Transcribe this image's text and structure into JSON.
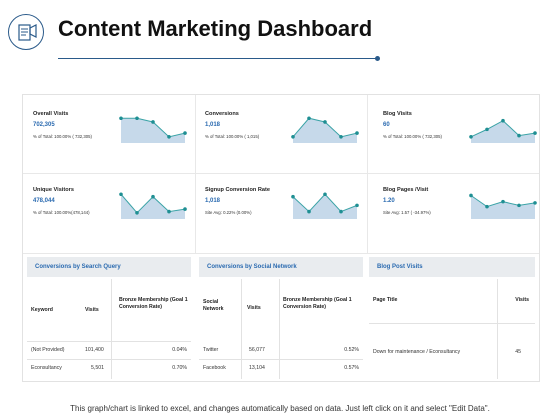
{
  "page": {
    "title": "Content Marketing Dashboard",
    "footer": "This graph/chart is linked to excel, and changes automatically based on data. Just left click on it and select \"Edit Data\"."
  },
  "metrics": [
    {
      "label": "Overall Visits",
      "value": "702,305",
      "sub": "% of Total: 100.00% ( 732,305)",
      "trend": [
        4,
        4,
        3.4,
        1,
        1.6
      ]
    },
    {
      "label": "Conversions",
      "value": "1,018",
      "sub": "% of Total: 100.00% ( 1,015)",
      "trend": [
        1,
        4,
        3.4,
        1,
        1.6
      ]
    },
    {
      "label": "Blog Visits",
      "value": "60",
      "sub": "% of Total: 100.00% ( 732,305)",
      "trend": [
        1,
        2.2,
        3.6,
        1.2,
        1.6
      ]
    },
    {
      "label": "Unique Visitors",
      "value": "478,044",
      "sub": "% of Total: 100.00%(478,144)",
      "trend": [
        4,
        1,
        3.6,
        1.2,
        1.6
      ]
    },
    {
      "label": "Signup Conversion Rate",
      "value": "1,018",
      "sub": "Site Avg: 0.22% (0.00%)",
      "trend": [
        3.6,
        1.2,
        4,
        1.2,
        2.2
      ]
    },
    {
      "label": "Blog Pages /Visit",
      "value": "1.20",
      "sub": "Site Avg: 1.57  ( -34.97%)",
      "trend": [
        3.8,
        2,
        2.8,
        2.2,
        2.6
      ]
    }
  ],
  "search": {
    "heading": "Conversions by Search Query",
    "columns": [
      "Keyword",
      "Visits",
      "Bronze Membership (Goal 1 Conversion Rate)"
    ],
    "rows": [
      [
        "(Not Provided)",
        "101,400",
        "0.04%"
      ],
      [
        "Econsultancy",
        "5,501",
        "0.70%"
      ]
    ]
  },
  "social": {
    "heading": "Conversions by Social Network",
    "columns": [
      "Social Network",
      "Visits",
      "Bronze Membership (Goal 1 Conversion Rate)"
    ],
    "rows": [
      [
        "Twitter",
        "56,077",
        "0.52%"
      ],
      [
        "Facebook",
        "13,104",
        "0.57%"
      ]
    ]
  },
  "blog": {
    "heading": "Blog Post Visits",
    "columns": [
      "Page Title",
      "Visits"
    ],
    "rows": [
      [
        "Down for maintenance / Econsultancy",
        "45"
      ]
    ]
  },
  "colors": {
    "accent": "#2a6ab0",
    "spark_line": "#3aa3a6",
    "spark_fill": "#c6d9ea",
    "spark_dot": "#1f8f93"
  }
}
